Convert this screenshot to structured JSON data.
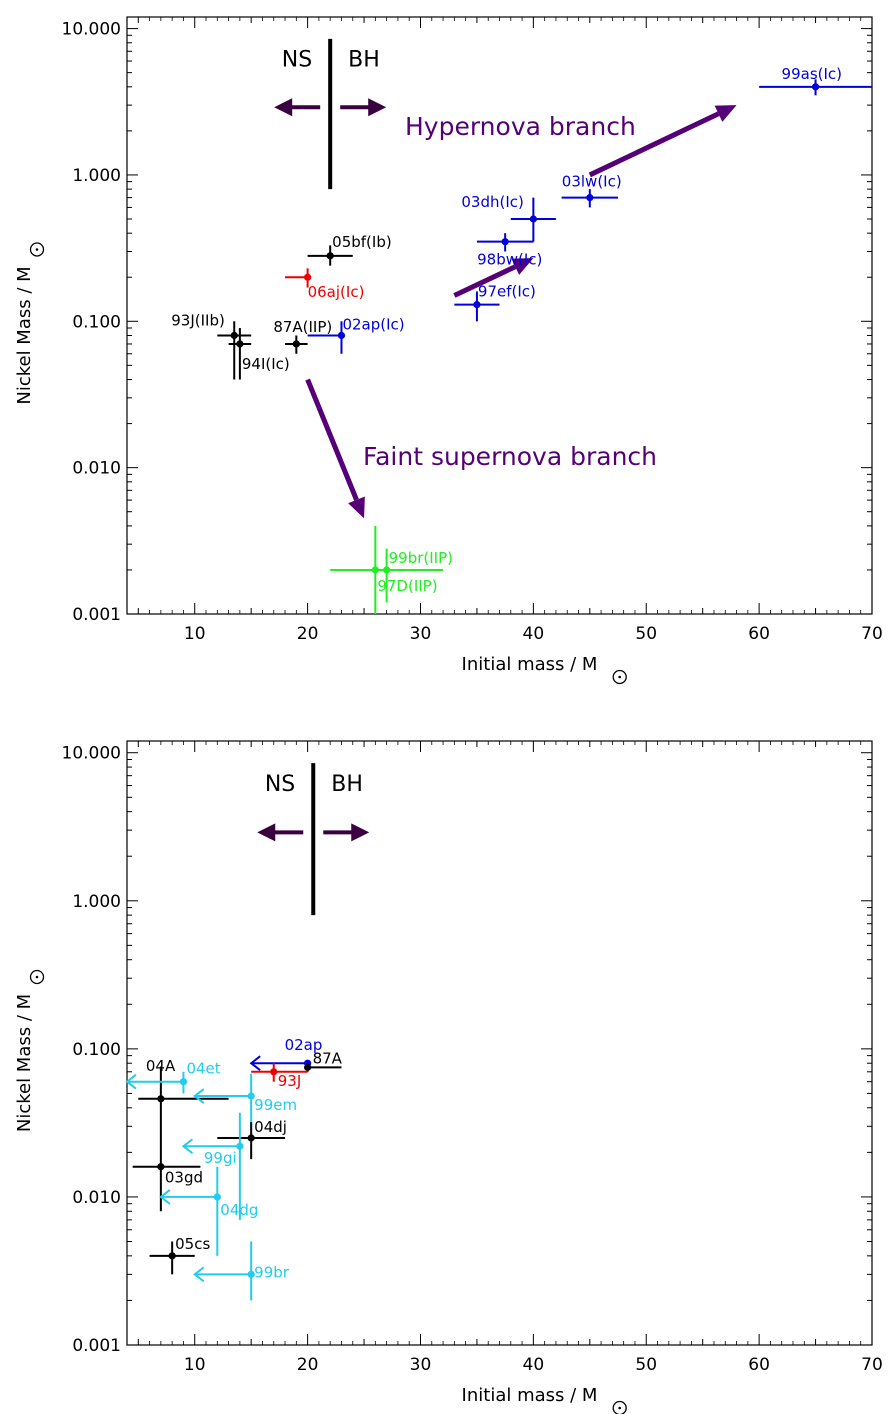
{
  "chart_data": [
    {
      "type": "scatter",
      "title": "",
      "xlabel": "Initial mass / M",
      "ylabel": "Nickel Mass / M",
      "xlim": [
        4,
        70
      ],
      "ylim": [
        0.001,
        12
      ],
      "y_scale": "log",
      "grid": false,
      "x_ticks": [
        "10",
        "20",
        "30",
        "40",
        "50",
        "60",
        "70"
      ],
      "y_ticks": [
        "0.001",
        "0.010",
        "0.100",
        "1.000",
        "10.000"
      ],
      "divider": {
        "x": 22,
        "left_label": "NS",
        "right_label": "BH",
        "color": "#000000"
      },
      "points": [
        {
          "label": "99as(Ic)",
          "x": 65,
          "y": 4.0,
          "xerr": [
            5,
            5
          ],
          "yerr": [
            0.5,
            0.5
          ],
          "color": "#0000dd"
        },
        {
          "label": "03lw(Ic)",
          "x": 45,
          "y": 0.7,
          "xerr": [
            2.5,
            2.5
          ],
          "yerr": [
            0.1,
            0.1
          ],
          "color": "#0000dd"
        },
        {
          "label": "03dh(Ic)",
          "x": 40,
          "y": 0.5,
          "xerr": [
            2,
            2
          ],
          "yerr": [
            0.15,
            0.2
          ],
          "color": "#0000dd"
        },
        {
          "label": "98bw(Ic)",
          "x": 37.5,
          "y": 0.35,
          "xerr": [
            2.5,
            2.5
          ],
          "yerr": [
            0.05,
            0.05
          ],
          "color": "#0000dd"
        },
        {
          "label": "97ef(Ic)",
          "x": 35,
          "y": 0.13,
          "xerr": [
            2,
            2
          ],
          "yerr": [
            0.03,
            0.03
          ],
          "color": "#0000dd"
        },
        {
          "label": "02ap(Ic)",
          "x": 23,
          "y": 0.08,
          "xerr": [
            3,
            0
          ],
          "yerr": [
            0.02,
            0.02
          ],
          "color": "#0000dd"
        },
        {
          "label": "05bf(Ib)",
          "x": 22,
          "y": 0.28,
          "xerr": [
            2,
            2
          ],
          "yerr": [
            0.04,
            0.05
          ],
          "color": "#000000"
        },
        {
          "label": "06aj(Ic)",
          "x": 20,
          "y": 0.2,
          "xerr": [
            2,
            0
          ],
          "yerr": [
            0.03,
            0.03
          ],
          "color": "#ee0000"
        },
        {
          "label": "87A(IIP)",
          "x": 19,
          "y": 0.07,
          "xerr": [
            1,
            1
          ],
          "yerr": [
            0.01,
            0.01
          ],
          "color": "#000000"
        },
        {
          "label": "93J(IIb)",
          "x": 13.5,
          "y": 0.08,
          "xerr": [
            1.5,
            1.5
          ],
          "yerr": [
            0.04,
            0.02
          ],
          "color": "#000000"
        },
        {
          "label": "94I(Ic)",
          "x": 14,
          "y": 0.07,
          "xerr": [
            1,
            1
          ],
          "yerr": [
            0.03,
            0.02
          ],
          "color": "#000000"
        },
        {
          "label": "99br(IIP)",
          "x": 27,
          "y": 0.002,
          "xerr": [
            1,
            0
          ],
          "yerr": [
            0.0008,
            0.0008
          ],
          "color": "#22ee22"
        },
        {
          "label": "97D(IIP)",
          "x": 26,
          "y": 0.002,
          "xerr": [
            4,
            6
          ],
          "yerr": [
            0.001,
            0.002
          ],
          "color": "#22ee22"
        }
      ],
      "branch_arrows": [
        {
          "label": "Hypernova branch",
          "color": "#550077",
          "from": [
            45,
            1.0
          ],
          "to": [
            58,
            3.0
          ]
        },
        {
          "label": "",
          "color": "#550077",
          "from": [
            33,
            0.15
          ],
          "to": [
            40,
            0.27
          ]
        },
        {
          "label": "Faint supernova branch",
          "color": "#550077",
          "from": [
            20,
            0.04
          ],
          "to": [
            25,
            0.0045
          ]
        }
      ]
    },
    {
      "type": "scatter",
      "title": "",
      "xlabel": "Initial mass / M",
      "ylabel": "Nickel Mass / M",
      "xlim": [
        4,
        70
      ],
      "ylim": [
        0.001,
        12
      ],
      "y_scale": "log",
      "grid": false,
      "x_ticks": [
        "10",
        "20",
        "30",
        "40",
        "50",
        "60",
        "70"
      ],
      "y_ticks": [
        "0.001",
        "0.010",
        "0.100",
        "1.000",
        "10.000"
      ],
      "divider": {
        "x": 20.5,
        "left_label": "NS",
        "right_label": "BH",
        "color": "#000000"
      },
      "points": [
        {
          "label": "02ap",
          "x": 20,
          "y": 0.08,
          "xerr": [
            0,
            0
          ],
          "yerr": [
            0,
            0
          ],
          "upper_limit_x": 15,
          "color": "#0000dd"
        },
        {
          "label": "87A",
          "x": 20,
          "y": 0.075,
          "xerr": [
            0,
            3
          ],
          "yerr": [
            0.005,
            0.005
          ],
          "color": "#000000"
        },
        {
          "label": "93J",
          "x": 17,
          "y": 0.07,
          "xerr": [
            2,
            3
          ],
          "yerr": [
            0.01,
            0.01
          ],
          "color": "#ee0000"
        },
        {
          "label": "04A",
          "x": 7,
          "y": 0.046,
          "xerr": [
            2,
            6
          ],
          "yerr": [
            0.02,
            0.03
          ],
          "color": "#000000"
        },
        {
          "label": "04et",
          "x": 9,
          "y": 0.06,
          "xerr": [
            0,
            0
          ],
          "yerr": [
            0.01,
            0.01
          ],
          "upper_limit_x": 4,
          "color": "#22ccee"
        },
        {
          "label": "99em",
          "x": 15,
          "y": 0.048,
          "xerr": [
            0,
            0
          ],
          "yerr": [
            0.02,
            0.02
          ],
          "upper_limit_x": 10,
          "color": "#22ccee"
        },
        {
          "label": "04dj",
          "x": 15,
          "y": 0.025,
          "xerr": [
            3,
            3
          ],
          "yerr": [
            0.007,
            0.007
          ],
          "color": "#000000"
        },
        {
          "label": "99gi",
          "x": 14,
          "y": 0.022,
          "xerr": [
            0,
            0
          ],
          "yerr": [
            0.015,
            0.015
          ],
          "upper_limit_x": 9,
          "color": "#22ccee"
        },
        {
          "label": "03gd",
          "x": 7,
          "y": 0.016,
          "xerr": [
            2.5,
            3.5
          ],
          "yerr": [
            0.008,
            0.01
          ],
          "color": "#000000"
        },
        {
          "label": "04dg",
          "x": 12,
          "y": 0.01,
          "xerr": [
            0,
            0
          ],
          "yerr": [
            0.006,
            0.006
          ],
          "upper_limit_x": 7,
          "color": "#22ccee"
        },
        {
          "label": "05cs",
          "x": 8,
          "y": 0.004,
          "xerr": [
            2,
            2
          ],
          "yerr": [
            0.001,
            0.001
          ],
          "color": "#000000"
        },
        {
          "label": "99br",
          "x": 15,
          "y": 0.003,
          "xerr": [
            0,
            0
          ],
          "yerr": [
            0.001,
            0.002
          ],
          "upper_limit_x": 10,
          "color": "#22ccee"
        }
      ]
    }
  ]
}
